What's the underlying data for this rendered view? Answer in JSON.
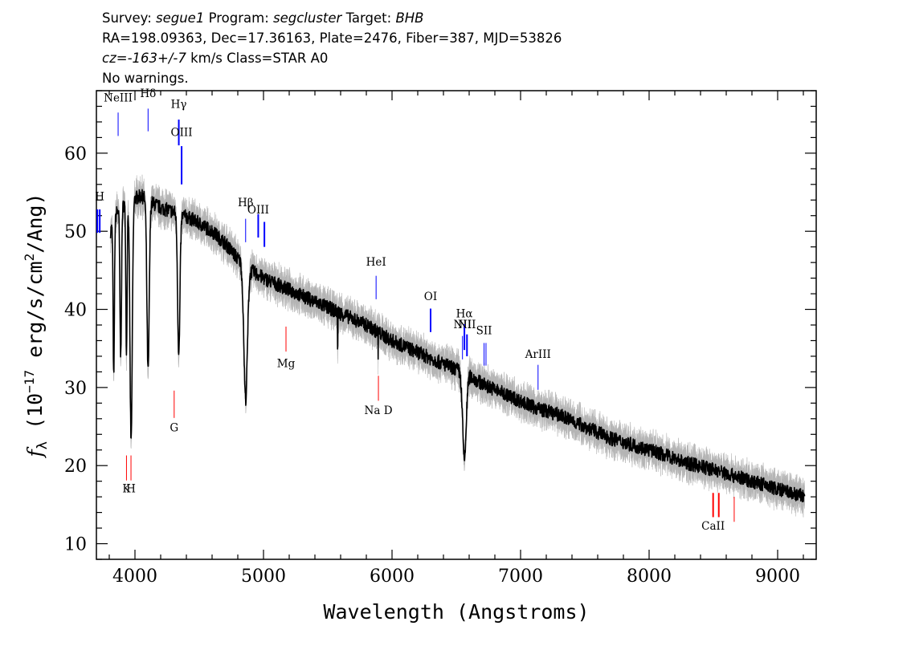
{
  "header": {
    "line1": [
      {
        "text": "Survey: ",
        "italic": false
      },
      {
        "text": "segue1",
        "italic": true
      },
      {
        "text": " Program: ",
        "italic": false
      },
      {
        "text": "segcluster",
        "italic": true
      },
      {
        "text": " Target: ",
        "italic": false
      },
      {
        "text": "BHB",
        "italic": true
      }
    ],
    "line2": "RA=198.09363, Dec=17.36163, Plate=2476, Fiber=387, MJD=53826",
    "line3": [
      {
        "text": "cz=",
        "italic": true
      },
      {
        "text": "-163+/-7",
        "italic": true
      },
      {
        "text": " km/s Class=STAR A0",
        "italic": false
      }
    ],
    "line4": "No warnings."
  },
  "chart_data": {
    "type": "line",
    "xlabel": "Wavelength (Angstroms)",
    "ylabel_prefix": "f",
    "ylabel_sub": "λ",
    "ylabel_mid": " (10",
    "ylabel_exp": "−17",
    "ylabel_rest": " erg/s/cm",
    "ylabel_exp2": "2",
    "ylabel_tail": "/Ang)",
    "xlim": [
      3700,
      9300
    ],
    "ylim": [
      8,
      68
    ],
    "x_ticks": [
      4000,
      5000,
      6000,
      7000,
      8000,
      9000
    ],
    "y_ticks": [
      10,
      20,
      30,
      40,
      50,
      60
    ],
    "x_minor_step": 200,
    "y_minor_step": 2,
    "grid": false,
    "series": [
      {
        "color": "#000000",
        "error_color": "#b4b4b4",
        "x_range": [
          3810,
          9210
        ],
        "continuum": [
          [
            3810,
            50
          ],
          [
            3860,
            52.5
          ],
          [
            3950,
            54
          ],
          [
            4050,
            54.5
          ],
          [
            4200,
            53
          ],
          [
            4300,
            52.5
          ],
          [
            4450,
            51.5
          ],
          [
            4600,
            50
          ],
          [
            4700,
            48.5
          ],
          [
            4800,
            46.5
          ],
          [
            4900,
            45
          ],
          [
            5000,
            44
          ],
          [
            5200,
            42.5
          ],
          [
            5400,
            41
          ],
          [
            5600,
            39.5
          ],
          [
            5800,
            38
          ],
          [
            6000,
            36
          ],
          [
            6200,
            34.5
          ],
          [
            6400,
            33
          ],
          [
            6550,
            32
          ],
          [
            6700,
            30.5
          ],
          [
            6900,
            29
          ],
          [
            7100,
            27.5
          ],
          [
            7300,
            26.5
          ],
          [
            7500,
            25
          ],
          [
            7700,
            23.5
          ],
          [
            7900,
            22.5
          ],
          [
            8100,
            21.5
          ],
          [
            8300,
            20.3
          ],
          [
            8500,
            19.5
          ],
          [
            8700,
            18.5
          ],
          [
            8900,
            17.5
          ],
          [
            9100,
            16.5
          ],
          [
            9210,
            16
          ]
        ],
        "absorptions": [
          {
            "center": 3835,
            "depth": 20,
            "width": 5
          },
          {
            "center": 3889,
            "depth": 19,
            "width": 6
          },
          {
            "center": 3934,
            "depth": 19,
            "width": 5
          },
          {
            "center": 3970,
            "depth": 31,
            "width": 9
          },
          {
            "center": 4102,
            "depth": 22,
            "width": 9
          },
          {
            "center": 4341,
            "depth": 18,
            "width": 9
          },
          {
            "center": 4861,
            "depth": 17,
            "width": 14
          },
          {
            "center": 6563,
            "depth": 11,
            "width": 14
          }
        ],
        "spikes": [
          {
            "x": 5577,
            "y": 35
          },
          {
            "x": 5892,
            "y": 33.5
          }
        ],
        "noise_amplitude": 0.9,
        "error_amplitude": 1.6
      }
    ],
    "line_markers": [
      {
        "label": "H",
        "x": 3726,
        "y1": 49.8,
        "y2": 52.8,
        "color": "#0000ff",
        "label_y": 54,
        "width": 2,
        "double": true
      },
      {
        "label": "NeIII",
        "x": 3869,
        "y1": 62.2,
        "y2": 65.2,
        "color": "#0000ff",
        "label_y": 66.6,
        "width": 1
      },
      {
        "label": "Hδ",
        "x": 4102,
        "y1": 62.8,
        "y2": 65.7,
        "color": "#0000ff",
        "label_y": 67.2,
        "width": 1
      },
      {
        "label": "Hγ",
        "x": 4341,
        "y1": 61.0,
        "y2": 64.3,
        "color": "#0000ff",
        "label_y": 65.8,
        "width": 2
      },
      {
        "label": "OIII",
        "x": 4363,
        "y1": 56.0,
        "y2": 60.9,
        "color": "#0000ff",
        "label_y": 62.2,
        "width": 2
      },
      {
        "label": "Hβ",
        "x": 4861,
        "y1": 48.6,
        "y2": 51.6,
        "color": "#0000ff",
        "label_y": 53.2,
        "width": 1
      },
      {
        "label": "OIII",
        "x": 4959,
        "y1": 49.2,
        "y2": 52.2,
        "color": "#0000ff",
        "label_y": 52.3,
        "width": 2
      },
      {
        "label": "",
        "x": 5007,
        "y1": 48.0,
        "y2": 51.2,
        "color": "#0000ff",
        "label_y": 0,
        "width": 2
      },
      {
        "label": "HeI",
        "x": 5876,
        "y1": 41.3,
        "y2": 44.3,
        "color": "#0000ff",
        "label_y": 45.6,
        "width": 1
      },
      {
        "label": "OI",
        "x": 6300,
        "y1": 37.1,
        "y2": 40.1,
        "color": "#0000ff",
        "label_y": 41.2,
        "width": 2
      },
      {
        "label": "NII",
        "x": 6548,
        "y1": 33.6,
        "y2": 36.6,
        "color": "#0000ff",
        "label_y": 37.6,
        "width": 1
      },
      {
        "label": "Hα",
        "x": 6563,
        "y1": 34.8,
        "y2": 38.1,
        "color": "#0000ff",
        "label_y": 39.0,
        "width": 2
      },
      {
        "label": "NII",
        "x": 6583,
        "y1": 34.0,
        "y2": 36.8,
        "color": "#0000ff",
        "label_y": 37.6,
        "width": 2
      },
      {
        "label": "SII",
        "x": 6716,
        "y1": 32.8,
        "y2": 35.7,
        "color": "#0000ff",
        "label_y": 36.8,
        "width": 1
      },
      {
        "label": "",
        "x": 6731,
        "y1": 32.8,
        "y2": 35.7,
        "color": "#0000ff",
        "label_y": 0,
        "width": 1
      },
      {
        "label": "ArIII",
        "x": 7136,
        "y1": 29.7,
        "y2": 32.9,
        "color": "#0000ff",
        "label_y": 33.8,
        "width": 1
      },
      {
        "label": "Mg",
        "x": 5175,
        "y1": 34.6,
        "y2": 37.8,
        "color": "#ff0000",
        "label_y": 32.6,
        "width": 1
      },
      {
        "label": "Na D",
        "x": 5894,
        "y1": 28.3,
        "y2": 31.5,
        "color": "#ff0000",
        "label_y": 26.6,
        "width": 1
      },
      {
        "label": "G",
        "x": 4305,
        "y1": 26.1,
        "y2": 29.6,
        "color": "#ff0000",
        "label_y": 24.4,
        "width": 1
      },
      {
        "label": "K",
        "x": 3934,
        "y1": 18.1,
        "y2": 21.3,
        "color": "#ff0000",
        "label_y": 16.6,
        "width": 1
      },
      {
        "label": "H",
        "x": 3969,
        "y1": 18.1,
        "y2": 21.3,
        "color": "#ff0000",
        "label_y": 16.6,
        "width": 1
      },
      {
        "label": "CaII",
        "x": 8498,
        "y1": 13.4,
        "y2": 16.5,
        "color": "#ff0000",
        "label_y": 11.8,
        "width": 2
      },
      {
        "label": "",
        "x": 8542,
        "y1": 13.4,
        "y2": 16.5,
        "color": "#ff0000",
        "label_y": 0,
        "width": 2
      },
      {
        "label": "",
        "x": 8662,
        "y1": 12.8,
        "y2": 16.0,
        "color": "#ff0000",
        "label_y": 0,
        "width": 1
      }
    ]
  }
}
